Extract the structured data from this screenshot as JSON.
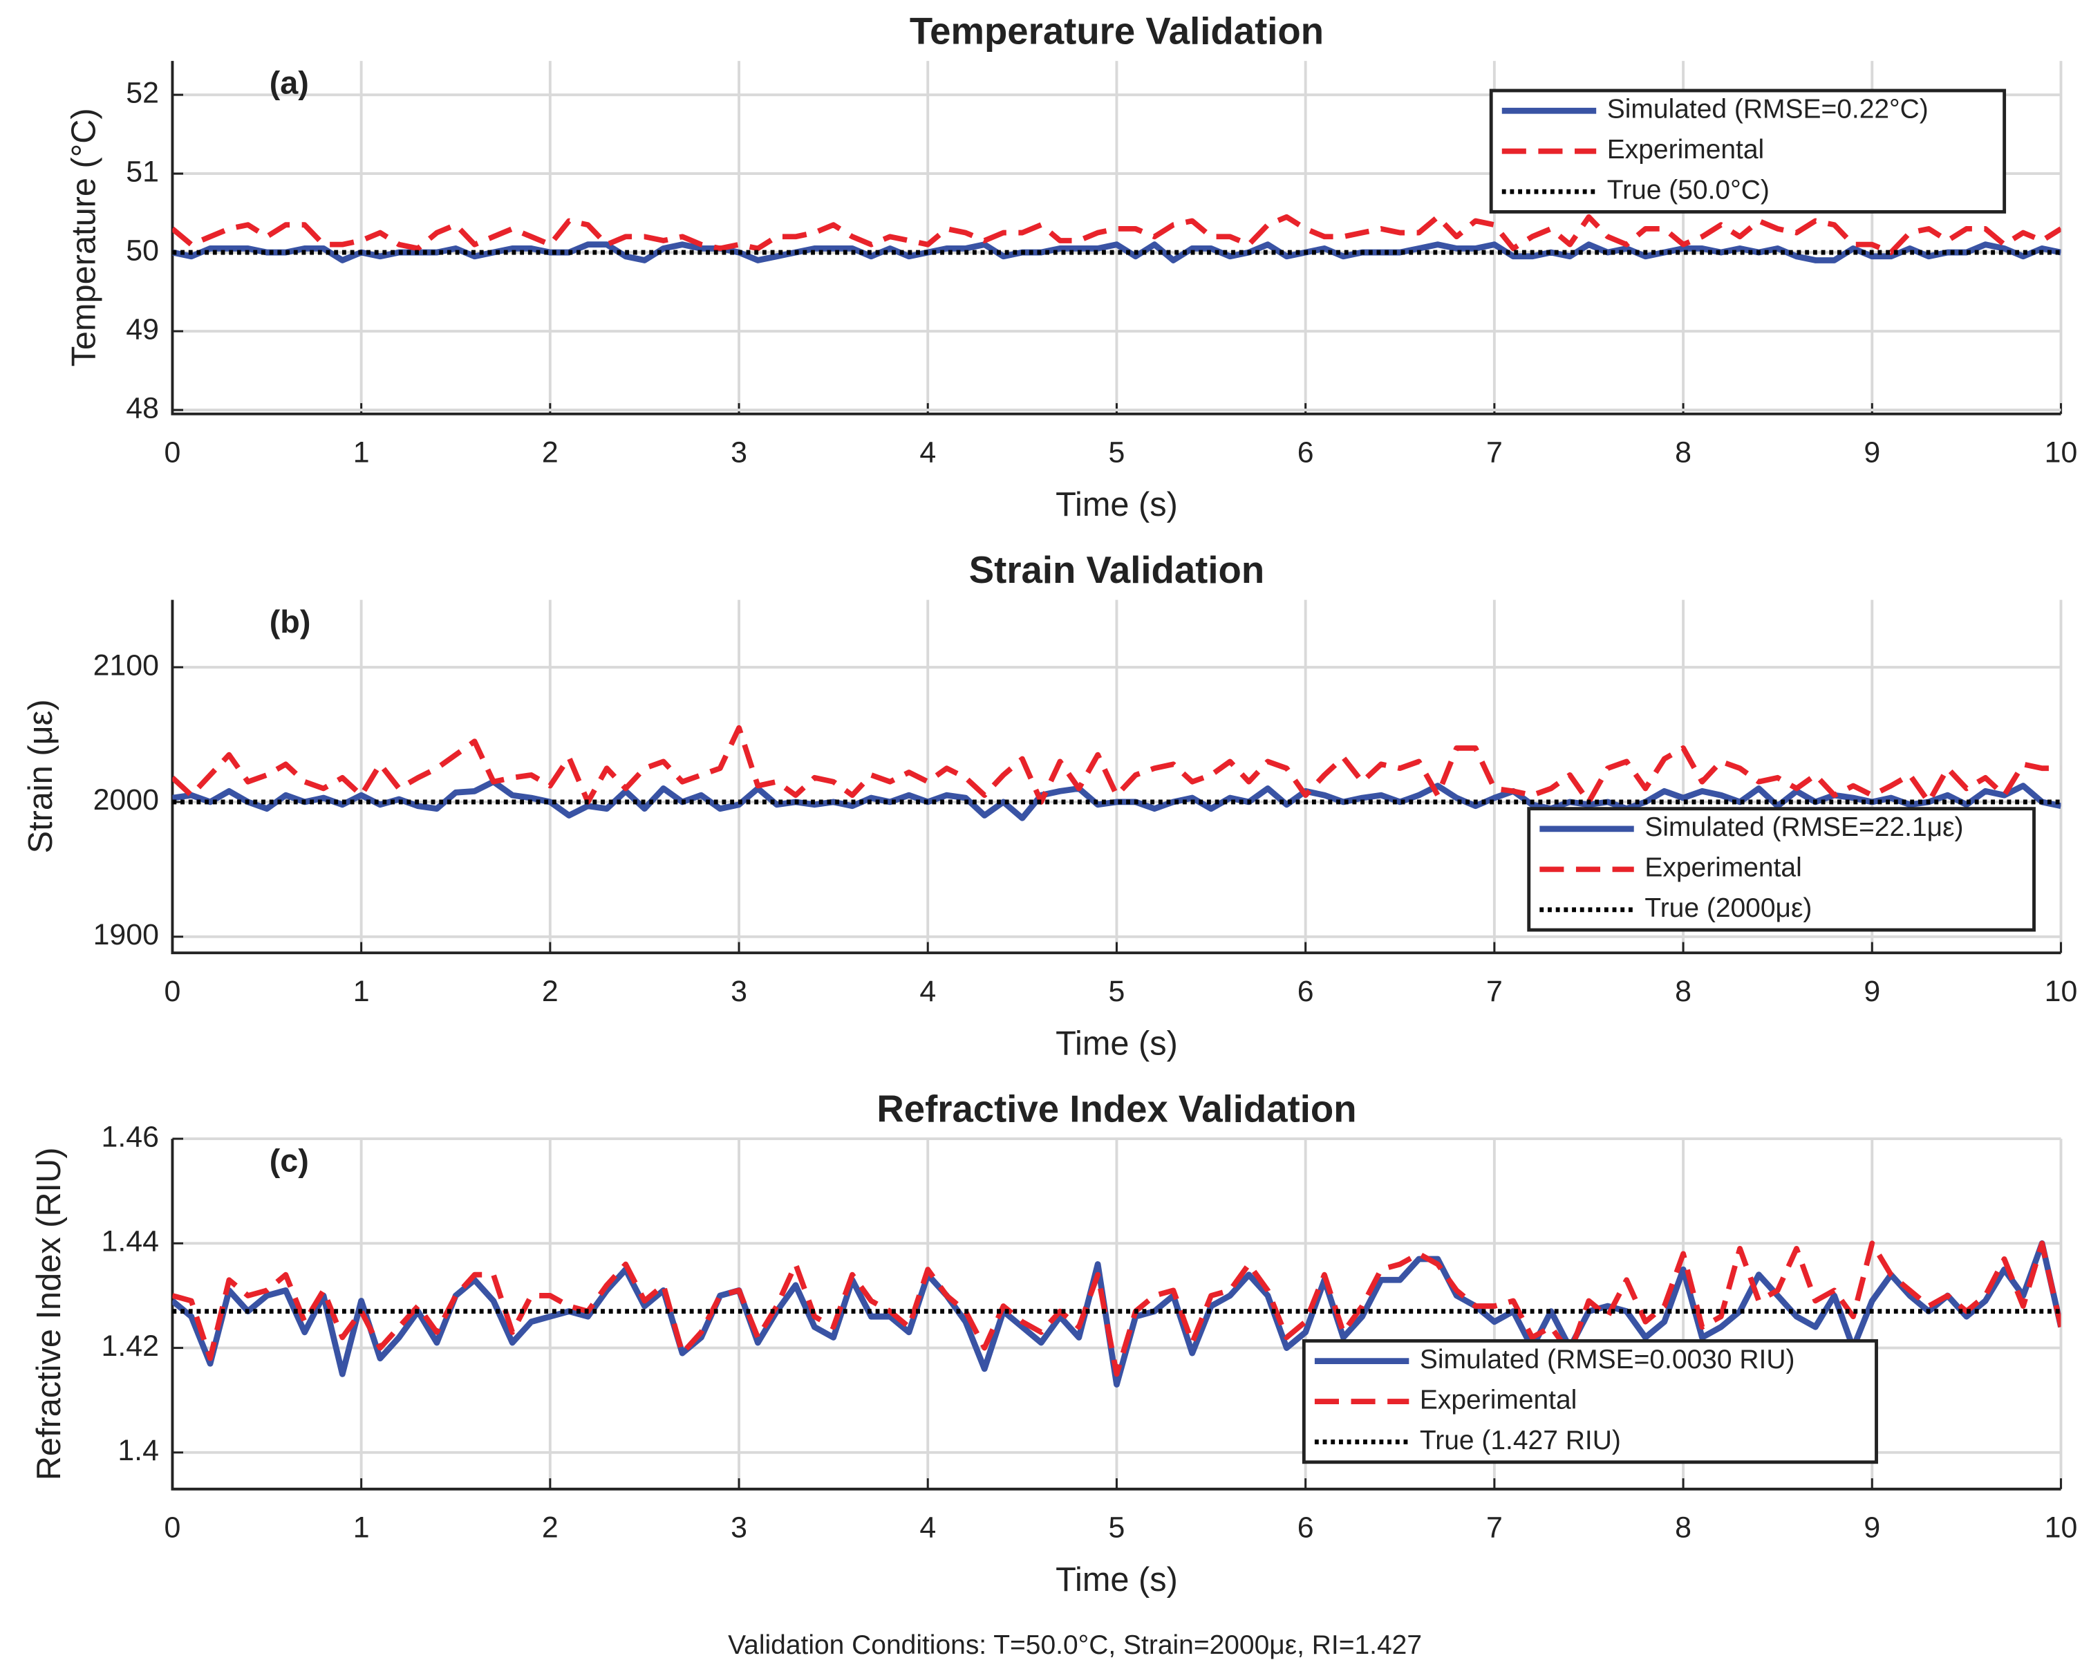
{
  "chart_data": [
    {
      "type": "line",
      "title": "Temperature Validation",
      "annotation": "(a)",
      "xlabel": "Time (s)",
      "ylabel": "Temperature (°C)",
      "x": [
        0,
        0.1,
        0.2,
        0.3,
        0.4,
        0.5,
        0.6,
        0.7,
        0.8,
        0.9,
        1,
        1.1,
        1.2,
        1.3,
        1.4,
        1.5,
        1.6,
        1.7,
        1.8,
        1.9,
        2,
        2.1,
        2.2,
        2.3,
        2.4,
        2.5,
        2.6,
        2.7,
        2.8,
        2.9,
        3,
        3.1,
        3.2,
        3.3,
        3.4,
        3.5,
        3.6,
        3.7,
        3.8,
        3.9,
        4,
        4.1,
        4.2,
        4.3,
        4.4,
        4.5,
        4.6,
        4.7,
        4.8,
        4.9,
        5,
        5.1,
        5.2,
        5.3,
        5.4,
        5.5,
        5.6,
        5.7,
        5.8,
        5.9,
        6,
        6.1,
        6.2,
        6.3,
        6.4,
        6.5,
        6.6,
        6.7,
        6.8,
        6.9,
        7,
        7.1,
        7.2,
        7.3,
        7.4,
        7.5,
        7.6,
        7.7,
        7.8,
        7.9,
        8,
        8.1,
        8.2,
        8.3,
        8.4,
        8.5,
        8.6,
        8.7,
        8.8,
        8.9,
        9,
        9.1,
        9.2,
        9.3,
        9.4,
        9.5,
        9.6,
        9.7,
        9.8,
        9.9,
        10
      ],
      "xlim": [
        0,
        10
      ],
      "xticks": [
        0,
        1,
        2,
        3,
        4,
        5,
        6,
        7,
        8,
        9,
        10
      ],
      "ylim": [
        47.95,
        52.43
      ],
      "yticks": [
        48,
        49,
        50,
        51,
        52
      ],
      "grid": true,
      "legend": "upper right",
      "series": [
        {
          "name": "Simulated (RMSE=0.22°C)",
          "color": "#3953a4",
          "linestyle": "solid",
          "values": [
            50.0,
            49.95,
            50.05,
            50.05,
            50.05,
            50.0,
            50.0,
            50.05,
            50.05,
            49.9,
            50.0,
            49.95,
            50.0,
            50.0,
            50.0,
            50.05,
            49.95,
            50.0,
            50.05,
            50.05,
            50.0,
            50.0,
            50.1,
            50.1,
            49.95,
            49.9,
            50.05,
            50.1,
            50.05,
            50.05,
            50.0,
            49.9,
            49.95,
            50.0,
            50.05,
            50.05,
            50.05,
            49.95,
            50.05,
            49.95,
            50.0,
            50.05,
            50.05,
            50.1,
            49.95,
            50.0,
            50.0,
            50.05,
            50.05,
            50.05,
            50.1,
            49.95,
            50.1,
            49.9,
            50.05,
            50.05,
            49.95,
            50.0,
            50.1,
            49.95,
            50.0,
            50.05,
            49.95,
            50.0,
            50.0,
            50.0,
            50.05,
            50.1,
            50.05,
            50.05,
            50.1,
            49.95,
            49.95,
            50.0,
            49.95,
            50.1,
            50.0,
            50.05,
            49.95,
            50.0,
            50.05,
            50.05,
            50.0,
            50.05,
            50.0,
            50.05,
            49.95,
            49.9,
            49.9,
            50.05,
            49.95,
            49.95,
            50.05,
            49.95,
            50.0,
            50.0,
            50.1,
            50.05,
            49.95,
            50.05,
            50.0
          ]
        },
        {
          "name": "Experimental",
          "color": "#e8232a",
          "linestyle": "dashed",
          "values": [
            50.3,
            50.1,
            50.2,
            50.3,
            50.35,
            50.2,
            50.35,
            50.35,
            50.1,
            50.1,
            50.15,
            50.25,
            50.1,
            50.05,
            50.25,
            50.35,
            50.1,
            50.2,
            50.3,
            50.2,
            50.1,
            50.4,
            50.35,
            50.1,
            50.2,
            50.2,
            50.15,
            50.2,
            50.1,
            50.05,
            50.1,
            50.05,
            50.2,
            50.2,
            50.25,
            50.35,
            50.2,
            50.1,
            50.2,
            50.15,
            50.1,
            50.3,
            50.25,
            50.15,
            50.25,
            50.25,
            50.35,
            50.15,
            50.15,
            50.25,
            50.3,
            50.3,
            50.2,
            50.35,
            50.4,
            50.2,
            50.2,
            50.1,
            50.35,
            50.45,
            50.3,
            50.2,
            50.2,
            50.25,
            50.3,
            50.25,
            50.25,
            50.45,
            50.2,
            50.4,
            50.35,
            50.05,
            50.2,
            50.3,
            50.1,
            50.45,
            50.2,
            50.1,
            50.3,
            50.3,
            50.1,
            50.2,
            50.35,
            50.2,
            50.4,
            50.3,
            50.25,
            50.4,
            50.35,
            50.1,
            50.1,
            50.0,
            50.25,
            50.3,
            50.15,
            50.3,
            50.3,
            50.1,
            50.25,
            50.15,
            50.3
          ]
        },
        {
          "name": "True (50.0°C)",
          "color": "#000000",
          "linestyle": "dotted",
          "x": [
            0,
            10
          ],
          "values": [
            50,
            50
          ]
        }
      ]
    },
    {
      "type": "line",
      "title": "Strain Validation",
      "annotation": "(b)",
      "xlabel": "Time (s)",
      "ylabel": "Strain (με)",
      "x": [
        0,
        0.1,
        0.2,
        0.3,
        0.4,
        0.5,
        0.6,
        0.7,
        0.8,
        0.9,
        1,
        1.1,
        1.2,
        1.3,
        1.4,
        1.5,
        1.6,
        1.7,
        1.8,
        1.9,
        2,
        2.1,
        2.2,
        2.3,
        2.4,
        2.5,
        2.6,
        2.7,
        2.8,
        2.9,
        3,
        3.1,
        3.2,
        3.3,
        3.4,
        3.5,
        3.6,
        3.7,
        3.8,
        3.9,
        4,
        4.1,
        4.2,
        4.3,
        4.4,
        4.5,
        4.6,
        4.7,
        4.8,
        4.9,
        5,
        5.1,
        5.2,
        5.3,
        5.4,
        5.5,
        5.6,
        5.7,
        5.8,
        5.9,
        6,
        6.1,
        6.2,
        6.3,
        6.4,
        6.5,
        6.6,
        6.7,
        6.8,
        6.9,
        7,
        7.1,
        7.2,
        7.3,
        7.4,
        7.5,
        7.6,
        7.7,
        7.8,
        7.9,
        8,
        8.1,
        8.2,
        8.3,
        8.4,
        8.5,
        8.6,
        8.7,
        8.8,
        8.9,
        9,
        9.1,
        9.2,
        9.3,
        9.4,
        9.5,
        9.6,
        9.7,
        9.8,
        9.9,
        10
      ],
      "xlim": [
        0,
        10
      ],
      "xticks": [
        0,
        1,
        2,
        3,
        4,
        5,
        6,
        7,
        8,
        9,
        10
      ],
      "ylim": [
        1888,
        2150
      ],
      "yticks": [
        1900,
        2000,
        2100
      ],
      "grid": true,
      "legend": "lower right",
      "series": [
        {
          "name": "Simulated (RMSE=22.1με)",
          "color": "#3953a4",
          "linestyle": "solid",
          "values": [
            2003,
            2005,
            2000,
            2008,
            2000,
            1995,
            2005,
            2000,
            2003,
            1998,
            2005,
            1998,
            2002,
            1997,
            1995,
            2007,
            2008,
            2015,
            2005,
            2003,
            2000,
            1990,
            1997,
            1995,
            2008,
            1995,
            2010,
            2000,
            2005,
            1995,
            1998,
            2010,
            1998,
            2000,
            1998,
            2000,
            1997,
            2003,
            2000,
            2005,
            2000,
            2005,
            2003,
            1990,
            2000,
            1988,
            2005,
            2008,
            2010,
            1998,
            2000,
            2000,
            1995,
            2000,
            2003,
            1995,
            2003,
            2000,
            2010,
            1998,
            2008,
            2005,
            2000,
            2003,
            2005,
            2000,
            2005,
            2012,
            2003,
            1997,
            2003,
            2008,
            1998,
            1995,
            2000,
            1998,
            2000,
            1995,
            2000,
            2008,
            2003,
            2008,
            2005,
            2000,
            2010,
            1997,
            2008,
            2000,
            2005,
            2003,
            2000,
            2003,
            1998,
            2000,
            2005,
            1998,
            2008,
            2005,
            2012,
            2000,
            1997
          ]
        },
        {
          "name": "Experimental",
          "color": "#e8232a",
          "linestyle": "dashed",
          "values": [
            2018,
            2005,
            2020,
            2035,
            2015,
            2020,
            2028,
            2015,
            2010,
            2018,
            2005,
            2028,
            2010,
            2018,
            2025,
            2035,
            2045,
            2015,
            2018,
            2020,
            2012,
            2033,
            2000,
            2025,
            2010,
            2025,
            2030,
            2015,
            2020,
            2025,
            2055,
            2012,
            2015,
            2005,
            2018,
            2015,
            2005,
            2020,
            2015,
            2022,
            2015,
            2025,
            2018,
            2005,
            2020,
            2032,
            2000,
            2030,
            2010,
            2035,
            2005,
            2020,
            2025,
            2028,
            2015,
            2020,
            2030,
            2015,
            2030,
            2025,
            2005,
            2020,
            2033,
            2015,
            2028,
            2025,
            2030,
            2005,
            2040,
            2040,
            2010,
            2008,
            2005,
            2010,
            2020,
            2000,
            2025,
            2030,
            2010,
            2032,
            2040,
            2015,
            2030,
            2025,
            2015,
            2018,
            2010,
            2020,
            2005,
            2012,
            2005,
            2012,
            2020,
            2000,
            2025,
            2010,
            2018,
            2005,
            2028,
            2025,
            2025
          ]
        },
        {
          "name": "True (2000με)",
          "color": "#000000",
          "linestyle": "dotted",
          "x": [
            0,
            10
          ],
          "values": [
            2000,
            2000
          ]
        }
      ]
    },
    {
      "type": "line",
      "title": "Refractive Index Validation",
      "annotation": "(c)",
      "xlabel": "Time (s)",
      "ylabel": "Refractive Index (RIU)",
      "x": [
        0,
        0.1,
        0.2,
        0.3,
        0.4,
        0.5,
        0.6,
        0.7,
        0.8,
        0.9,
        1,
        1.1,
        1.2,
        1.3,
        1.4,
        1.5,
        1.6,
        1.7,
        1.8,
        1.9,
        2,
        2.1,
        2.2,
        2.3,
        2.4,
        2.5,
        2.6,
        2.7,
        2.8,
        2.9,
        3,
        3.1,
        3.2,
        3.3,
        3.4,
        3.5,
        3.6,
        3.7,
        3.8,
        3.9,
        4,
        4.1,
        4.2,
        4.3,
        4.4,
        4.5,
        4.6,
        4.7,
        4.8,
        4.9,
        5,
        5.1,
        5.2,
        5.3,
        5.4,
        5.5,
        5.6,
        5.7,
        5.8,
        5.9,
        6,
        6.1,
        6.2,
        6.3,
        6.4,
        6.5,
        6.6,
        6.7,
        6.8,
        6.9,
        7,
        7.1,
        7.2,
        7.3,
        7.4,
        7.5,
        7.6,
        7.7,
        7.8,
        7.9,
        8,
        8.1,
        8.2,
        8.3,
        8.4,
        8.5,
        8.6,
        8.7,
        8.8,
        8.9,
        9,
        9.1,
        9.2,
        9.3,
        9.4,
        9.5,
        9.6,
        9.7,
        9.8,
        9.9,
        10
      ],
      "xlim": [
        0,
        10
      ],
      "xticks": [
        0,
        1,
        2,
        3,
        4,
        5,
        6,
        7,
        8,
        9,
        10
      ],
      "ylim": [
        1.393,
        1.46
      ],
      "yticks": [
        1.4,
        1.42,
        1.44,
        1.46
      ],
      "grid": true,
      "legend": "lower right",
      "series": [
        {
          "name": "Simulated (RMSE=0.0030 RIU)",
          "color": "#3953a4",
          "linestyle": "solid",
          "values": [
            1.429,
            1.426,
            1.417,
            1.431,
            1.427,
            1.43,
            1.431,
            1.423,
            1.43,
            1.415,
            1.429,
            1.418,
            1.422,
            1.427,
            1.421,
            1.43,
            1.433,
            1.429,
            1.421,
            1.425,
            1.426,
            1.427,
            1.426,
            1.431,
            1.435,
            1.428,
            1.431,
            1.419,
            1.422,
            1.43,
            1.431,
            1.421,
            1.427,
            1.432,
            1.424,
            1.422,
            1.433,
            1.426,
            1.426,
            1.423,
            1.434,
            1.43,
            1.425,
            1.416,
            1.427,
            1.424,
            1.421,
            1.426,
            1.422,
            1.436,
            1.413,
            1.426,
            1.427,
            1.43,
            1.419,
            1.428,
            1.43,
            1.434,
            1.43,
            1.42,
            1.423,
            1.433,
            1.422,
            1.426,
            1.433,
            1.433,
            1.437,
            1.437,
            1.43,
            1.428,
            1.425,
            1.427,
            1.42,
            1.427,
            1.42,
            1.427,
            1.428,
            1.427,
            1.422,
            1.425,
            1.435,
            1.422,
            1.424,
            1.427,
            1.434,
            1.43,
            1.426,
            1.424,
            1.43,
            1.42,
            1.429,
            1.434,
            1.43,
            1.427,
            1.43,
            1.426,
            1.429,
            1.435,
            1.43,
            1.44,
            1.424
          ]
        },
        {
          "name": "Experimental",
          "color": "#e8232a",
          "linestyle": "dashed",
          "values": [
            1.43,
            1.429,
            1.418,
            1.433,
            1.43,
            1.431,
            1.434,
            1.425,
            1.431,
            1.422,
            1.427,
            1.42,
            1.424,
            1.428,
            1.423,
            1.43,
            1.434,
            1.434,
            1.423,
            1.43,
            1.43,
            1.428,
            1.427,
            1.432,
            1.436,
            1.429,
            1.432,
            1.419,
            1.423,
            1.43,
            1.431,
            1.422,
            1.428,
            1.436,
            1.426,
            1.424,
            1.434,
            1.429,
            1.427,
            1.424,
            1.435,
            1.43,
            1.427,
            1.42,
            1.428,
            1.425,
            1.423,
            1.427,
            1.424,
            1.434,
            1.415,
            1.427,
            1.43,
            1.431,
            1.421,
            1.43,
            1.431,
            1.436,
            1.431,
            1.422,
            1.425,
            1.434,
            1.423,
            1.428,
            1.435,
            1.436,
            1.438,
            1.436,
            1.431,
            1.428,
            1.428,
            1.429,
            1.422,
            1.424,
            1.419,
            1.429,
            1.426,
            1.433,
            1.425,
            1.428,
            1.438,
            1.424,
            1.426,
            1.439,
            1.429,
            1.431,
            1.439,
            1.429,
            1.431,
            1.426,
            1.44,
            1.434,
            1.431,
            1.428,
            1.43,
            1.427,
            1.43,
            1.437,
            1.428,
            1.44,
            1.424
          ]
        },
        {
          "name": "True (1.427 RIU)",
          "color": "#000000",
          "linestyle": "dotted",
          "x": [
            0,
            10
          ],
          "values": [
            1.427,
            1.427
          ]
        }
      ]
    }
  ],
  "footer": "Validation Conditions: T=50.0°C, Strain=2000με, RI=1.427"
}
